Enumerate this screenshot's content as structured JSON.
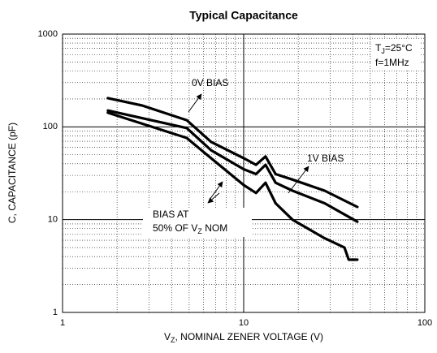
{
  "chart_data": {
    "type": "line",
    "title": "Typical Capacitance",
    "y_label": "C, CAPACITANCE (pF)",
    "x_label": {
      "text": "V",
      "sub": "Z",
      "after": ", NOMINAL ZENER VOLTAGE (V)"
    },
    "xscale": "log",
    "yscale": "log",
    "xlim": [
      1,
      100
    ],
    "ylim": [
      1,
      1000
    ],
    "xticks": [
      1,
      10,
      100
    ],
    "yticks": [
      1,
      10,
      100,
      1000
    ],
    "grid": true,
    "minor_grid": true,
    "series": [
      {
        "color": "#000000",
        "x": [
          1.78,
          2.75,
          4.85,
          6.6,
          10,
          11.7,
          13.2,
          15,
          18.6,
          28,
          42.4
        ],
        "values": [
          204,
          170,
          118,
          69,
          46,
          39,
          48,
          31,
          27,
          20.5,
          13.7
        ]
      },
      {
        "color": "#000000",
        "x": [
          1.78,
          4.85,
          6.6,
          10,
          11.7,
          13.2,
          15,
          18.6,
          28,
          42.4
        ],
        "values": [
          150,
          97,
          56,
          35,
          31,
          39,
          25,
          20.5,
          15,
          9.5
        ]
      },
      {
        "color": "#000000",
        "x": [
          1.78,
          4.85,
          6.6,
          10,
          11.7,
          13.2,
          15,
          18.6,
          28,
          36,
          38,
          42.4
        ],
        "values": [
          142,
          76,
          46,
          23.6,
          19.4,
          25,
          15,
          10,
          6.3,
          5,
          3.7,
          3.7
        ]
      }
    ],
    "annotations": [
      {
        "text": "T",
        "sub": "J",
        "after": "=25°C"
      },
      {
        "text": "f=1MHz"
      },
      {
        "text": "0V BIAS"
      },
      {
        "text": "1V BIAS"
      },
      {
        "text": "BIAS AT"
      },
      {
        "text": "50% OF V",
        "sub": "Z",
        "after": " NOM"
      }
    ]
  }
}
